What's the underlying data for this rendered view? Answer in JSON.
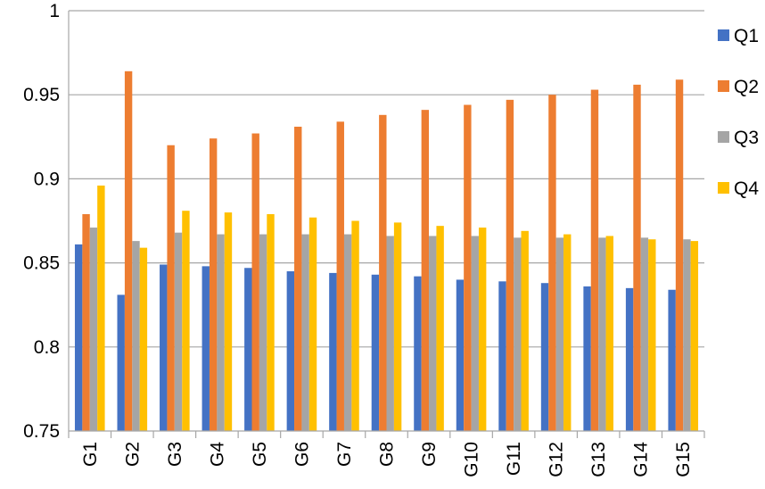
{
  "chart_data": {
    "type": "bar",
    "title": "",
    "xlabel": "",
    "ylabel": "",
    "ylim": [
      0.75,
      1.0
    ],
    "yticks": [
      "0.75",
      "0.8",
      "0.85",
      "0.9",
      "0.95",
      "1"
    ],
    "ytick_values": [
      0.75,
      0.8,
      0.85,
      0.9,
      0.95,
      1.0
    ],
    "grid": true,
    "legend_position": "right",
    "categories": [
      "G1",
      "G2",
      "G3",
      "G4",
      "G5",
      "G6",
      "G7",
      "G8",
      "G9",
      "G10",
      "G11",
      "G12",
      "G13",
      "G14",
      "G15"
    ],
    "series": [
      {
        "name": "Q1",
        "color": "#4472C4",
        "values": [
          0.861,
          0.831,
          0.849,
          0.848,
          0.847,
          0.845,
          0.844,
          0.843,
          0.842,
          0.84,
          0.839,
          0.838,
          0.836,
          0.835,
          0.834
        ]
      },
      {
        "name": "Q2",
        "color": "#ED7D31",
        "values": [
          0.879,
          0.964,
          0.92,
          0.924,
          0.927,
          0.931,
          0.934,
          0.938,
          0.941,
          0.944,
          0.947,
          0.95,
          0.953,
          0.956,
          0.959
        ]
      },
      {
        "name": "Q3",
        "color": "#A5A5A5",
        "values": [
          0.871,
          0.863,
          0.868,
          0.867,
          0.867,
          0.867,
          0.867,
          0.866,
          0.866,
          0.866,
          0.865,
          0.865,
          0.865,
          0.865,
          0.864
        ]
      },
      {
        "name": "Q4",
        "color": "#FFC000",
        "values": [
          0.896,
          0.859,
          0.881,
          0.88,
          0.879,
          0.877,
          0.875,
          0.874,
          0.872,
          0.871,
          0.869,
          0.867,
          0.866,
          0.864,
          0.863
        ]
      }
    ]
  }
}
